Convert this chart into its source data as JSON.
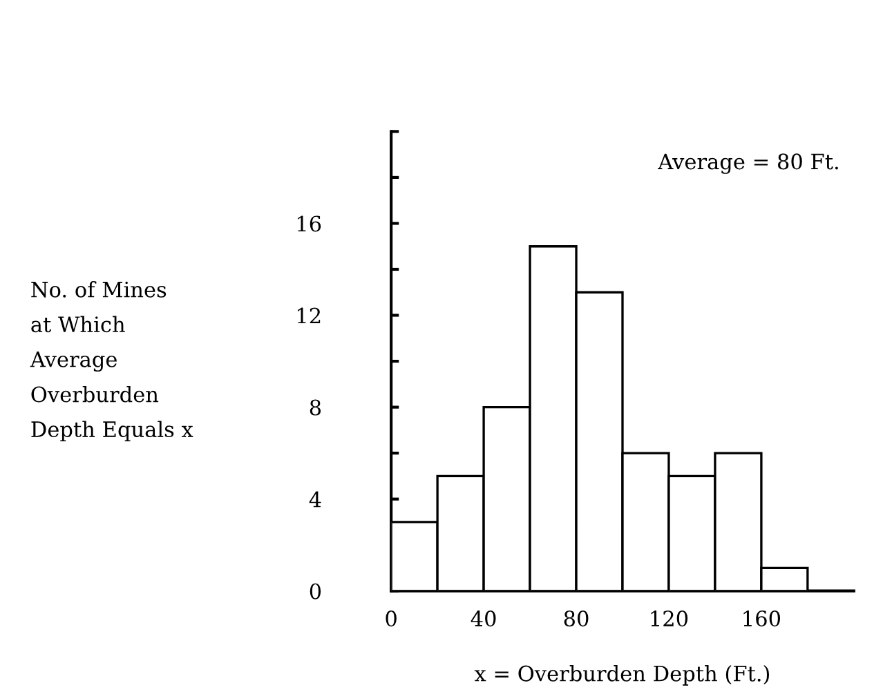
{
  "chart_data": {
    "type": "histogram",
    "xlabel": "x = Overburden Depth (Ft.)",
    "ylabel": "No. of Mines\nat Which\nAverage\nOverburden\nDepth Equals x",
    "annotations": [
      "Average = 80 Ft."
    ],
    "bins": [
      0,
      20,
      40,
      60,
      80,
      100,
      120,
      140,
      160,
      180
    ],
    "values": [
      3,
      5,
      8,
      15,
      13,
      6,
      5,
      6,
      1
    ],
    "color": "#ffffff",
    "xlim": [
      0,
      200
    ],
    "ylim": [
      0,
      20
    ],
    "xticks": [
      0,
      40,
      80,
      120,
      160
    ],
    "yticks": [
      0,
      {
        "value": 2,
        "label": null
      },
      4,
      {
        "value": 6,
        "label": null
      },
      8,
      {
        "value": 10,
        "label": null
      },
      12,
      {
        "value": 14,
        "label": null
      },
      16,
      {
        "value": 18,
        "label": null
      },
      {
        "value": 20,
        "label": null
      }
    ],
    "grid": false,
    "legend": false
  }
}
